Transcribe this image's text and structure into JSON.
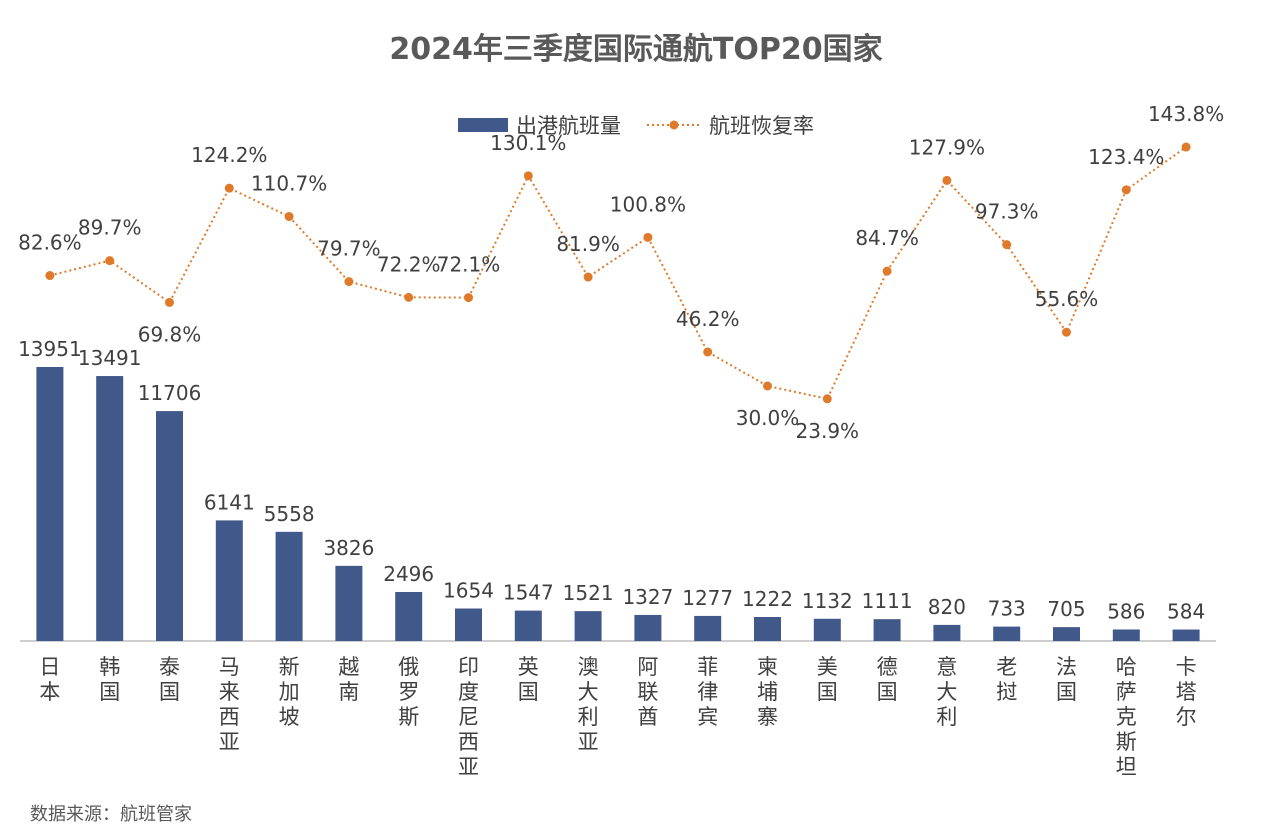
{
  "title": "2024年三季度国际通航TOP20国家",
  "source": "数据来源：航班管家",
  "legend": {
    "bar_label": "出港航班量",
    "line_label": "航班恢复率"
  },
  "colors": {
    "bar": "#41598A",
    "line": "#E07A2B",
    "axis": "#BFBFBF",
    "label": "#404040"
  },
  "chart_data": {
    "type": "bar",
    "title": "2024年三季度国际通航TOP20国家",
    "categories": [
      "日本",
      "韩国",
      "泰国",
      "马来西亚",
      "新加坡",
      "越南",
      "俄罗斯",
      "印度尼西亚",
      "英国",
      "澳大利亚",
      "阿联酋",
      "菲律宾",
      "柬埔寨",
      "美国",
      "德国",
      "意大利",
      "老挝",
      "法国",
      "哈萨克斯坦",
      "卡塔尔"
    ],
    "series": [
      {
        "name": "出港航班量",
        "type": "bar",
        "values": [
          13951,
          13491,
          11706,
          6141,
          5558,
          3826,
          2496,
          1654,
          1547,
          1521,
          1327,
          1277,
          1222,
          1132,
          1111,
          820,
          733,
          705,
          586,
          584
        ],
        "labels": [
          "13951",
          "13491",
          "11706",
          "6141",
          "5558",
          "3826",
          "2496",
          "1654",
          "1547",
          "1521",
          "1327",
          "1277",
          "1222",
          "1132",
          "1111",
          "820",
          "733",
          "705",
          "586",
          "584"
        ]
      },
      {
        "name": "航班恢复率",
        "type": "line",
        "style": "dotted-with-markers",
        "values": [
          82.6,
          89.7,
          69.8,
          124.2,
          110.7,
          79.7,
          72.2,
          72.1,
          130.1,
          81.9,
          100.8,
          46.2,
          30.0,
          23.9,
          84.7,
          127.9,
          97.3,
          55.6,
          123.4,
          143.8
        ],
        "labels": [
          "82.6%",
          "89.7%",
          "69.8%",
          "124.2%",
          "110.7%",
          "79.7%",
          "72.2%",
          "72.1%",
          "130.1%",
          "81.9%",
          "100.8%",
          "46.2%",
          "30.0%",
          "23.9%",
          "84.7%",
          "127.9%",
          "97.3%",
          "55.6%",
          "123.4%",
          "143.8%"
        ]
      }
    ],
    "legend_position": "top-center",
    "grid": false
  }
}
